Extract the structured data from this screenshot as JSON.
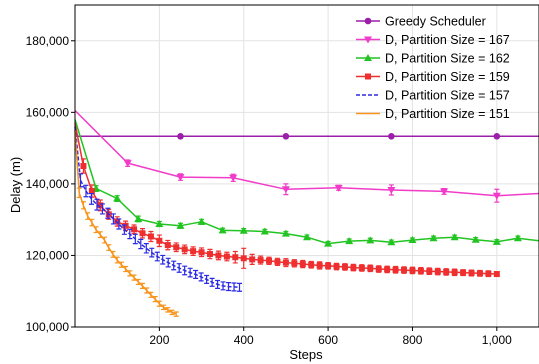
{
  "chart_data": {
    "type": "line",
    "title": "",
    "xlabel": "Steps",
    "ylabel": "Delay (m)",
    "xlim": [
      0,
      1100
    ],
    "ylim": [
      100000,
      190000
    ],
    "x_ticks": [
      200,
      400,
      600,
      800,
      1000
    ],
    "x_tick_labels": [
      "200",
      "400",
      "600",
      "800",
      "1,000"
    ],
    "y_ticks": [
      100000,
      120000,
      140000,
      160000,
      180000
    ],
    "y_tick_labels": [
      "100,000",
      "120,000",
      "140,000",
      "160,000",
      "180,000"
    ],
    "grid": true,
    "legend_position": "top-right",
    "series": [
      {
        "name": "Greedy Scheduler",
        "color": "#9b1fa8",
        "marker": "circle",
        "dashed": false,
        "x": [
          0,
          250,
          500,
          750,
          1000,
          1100
        ],
        "y": [
          153300,
          153300,
          153300,
          153300,
          153300,
          153300
        ],
        "markers_x": [
          250,
          500,
          750,
          1000
        ]
      },
      {
        "name": "D, Partition Size = 167",
        "color": "#f03cc8",
        "marker": "triangle-down",
        "dashed": false,
        "x": [
          0,
          125,
          250,
          375,
          500,
          625,
          750,
          875,
          1000,
          1100
        ],
        "y": [
          160500,
          145800,
          141900,
          141700,
          138500,
          138900,
          138300,
          137900,
          136700,
          137300
        ],
        "err": [
          0,
          900,
          900,
          1000,
          1500,
          700,
          1400,
          800,
          1800,
          0
        ],
        "markers_x": [
          125,
          250,
          375,
          500,
          625,
          750,
          875,
          1000
        ]
      },
      {
        "name": "D, Partition Size = 162",
        "color": "#22c422",
        "marker": "triangle-up",
        "dashed": false,
        "x": [
          0,
          50,
          100,
          150,
          200,
          250,
          300,
          350,
          400,
          450,
          500,
          550,
          600,
          650,
          700,
          750,
          800,
          850,
          900,
          950,
          1000,
          1050,
          1100
        ],
        "y": [
          158000,
          138700,
          135900,
          130200,
          128800,
          128300,
          129400,
          127000,
          126900,
          126700,
          126100,
          125100,
          123300,
          124000,
          124200,
          123700,
          124300,
          124800,
          125100,
          124400,
          123800,
          124800,
          124100
        ],
        "err": [
          0,
          800,
          800,
          800,
          700,
          700,
          700,
          600,
          600,
          600,
          600,
          600,
          600,
          600,
          600,
          600,
          600,
          600,
          600,
          600,
          600,
          600,
          0
        ],
        "markers_x": [
          50,
          100,
          150,
          200,
          250,
          300,
          350,
          400,
          450,
          500,
          550,
          600,
          650,
          700,
          750,
          800,
          850,
          900,
          950,
          1000,
          1050
        ]
      },
      {
        "name": "D, Partition Size = 159",
        "color": "#ef2f2f",
        "marker": "square",
        "dashed": false,
        "x": [
          0,
          20,
          40,
          60,
          80,
          100,
          120,
          140,
          160,
          180,
          200,
          220,
          240,
          260,
          280,
          300,
          320,
          340,
          360,
          380,
          400,
          420,
          440,
          460,
          480,
          500,
          520,
          540,
          560,
          580,
          600,
          620,
          640,
          660,
          680,
          700,
          720,
          740,
          760,
          780,
          800,
          820,
          840,
          860,
          880,
          900,
          920,
          940,
          960,
          980,
          1000
        ],
        "y": [
          157000,
          145000,
          138000,
          134000,
          131500,
          129500,
          128300,
          127300,
          126200,
          125300,
          124100,
          122900,
          122300,
          121700,
          121200,
          120900,
          120400,
          120000,
          119700,
          119500,
          119200,
          118900,
          118700,
          118500,
          118200,
          118000,
          117800,
          117600,
          117400,
          117200,
          117100,
          116900,
          116800,
          116600,
          116500,
          116400,
          116200,
          116100,
          116000,
          115900,
          115800,
          115700,
          115600,
          115500,
          115400,
          115300,
          115200,
          115100,
          115000,
          114900,
          114800
        ],
        "err": [
          0,
          2000,
          1700,
          1500,
          1400,
          1300,
          1300,
          1200,
          1300,
          1400,
          1600,
          1300,
          1200,
          1200,
          1200,
          1200,
          1300,
          1200,
          1200,
          1600,
          2800,
          1400,
          1100,
          1000,
          1000,
          1100,
          1000,
          1000,
          900,
          1000,
          900,
          900,
          900,
          900,
          900,
          900,
          900,
          900,
          900,
          900,
          900,
          900,
          900,
          900,
          900,
          900,
          800,
          800,
          800,
          800,
          600
        ],
        "markers_x": [
          20,
          40,
          60,
          80,
          100,
          120,
          140,
          160,
          180,
          200,
          220,
          240,
          260,
          280,
          300,
          320,
          340,
          360,
          380,
          400,
          420,
          440,
          460,
          480,
          500,
          520,
          540,
          560,
          580,
          600,
          620,
          640,
          660,
          680,
          700,
          720,
          740,
          760,
          780,
          800,
          820,
          840,
          860,
          880,
          900,
          920,
          940,
          960,
          980,
          1000
        ]
      },
      {
        "name": "D, Partition Size = 157",
        "color": "#2a2ae6",
        "marker": "none",
        "dashed": true,
        "x": [
          0,
          13,
          26,
          39,
          52,
          65,
          78,
          91,
          104,
          117,
          130,
          143,
          156,
          169,
          182,
          195,
          208,
          221,
          234,
          247,
          260,
          273,
          286,
          299,
          312,
          325,
          338,
          351,
          364,
          377,
          390
        ],
        "y": [
          156000,
          141000,
          138000,
          135800,
          134200,
          133000,
          131800,
          130200,
          128800,
          127200,
          126000,
          124600,
          123200,
          122000,
          120800,
          119700,
          118800,
          118000,
          117200,
          116500,
          115800,
          115200,
          114700,
          114000,
          113300,
          112500,
          111900,
          111500,
          111300,
          111200,
          111100
        ],
        "err": [
          0,
          1800,
          1600,
          1500,
          1500,
          1400,
          1400,
          1400,
          1400,
          1300,
          1300,
          1300,
          1300,
          1300,
          1200,
          1200,
          1200,
          1200,
          1200,
          1200,
          1200,
          1200,
          1100,
          1100,
          1100,
          1100,
          1100,
          1100,
          1100,
          1100,
          1100
        ],
        "markers_x": []
      },
      {
        "name": "D, Partition Size = 151",
        "color": "#f7941d",
        "marker": "none",
        "dashed": false,
        "x": [
          0,
          10,
          20,
          30,
          40,
          50,
          60,
          70,
          80,
          90,
          100,
          110,
          120,
          130,
          140,
          150,
          160,
          170,
          180,
          190,
          200,
          210,
          220,
          230,
          240
        ],
        "y": [
          155000,
          137500,
          134000,
          131000,
          129200,
          127200,
          125800,
          124300,
          122200,
          120300,
          118700,
          117400,
          116200,
          115000,
          113800,
          112600,
          111500,
          110200,
          109000,
          107800,
          106500,
          105500,
          104800,
          104100,
          103600
        ],
        "err": [
          0,
          1300,
          1000,
          900,
          900,
          800,
          800,
          800,
          800,
          800,
          800,
          700,
          700,
          700,
          700,
          700,
          700,
          700,
          700,
          700,
          700,
          600,
          600,
          600,
          600
        ],
        "markers_x": []
      }
    ]
  }
}
